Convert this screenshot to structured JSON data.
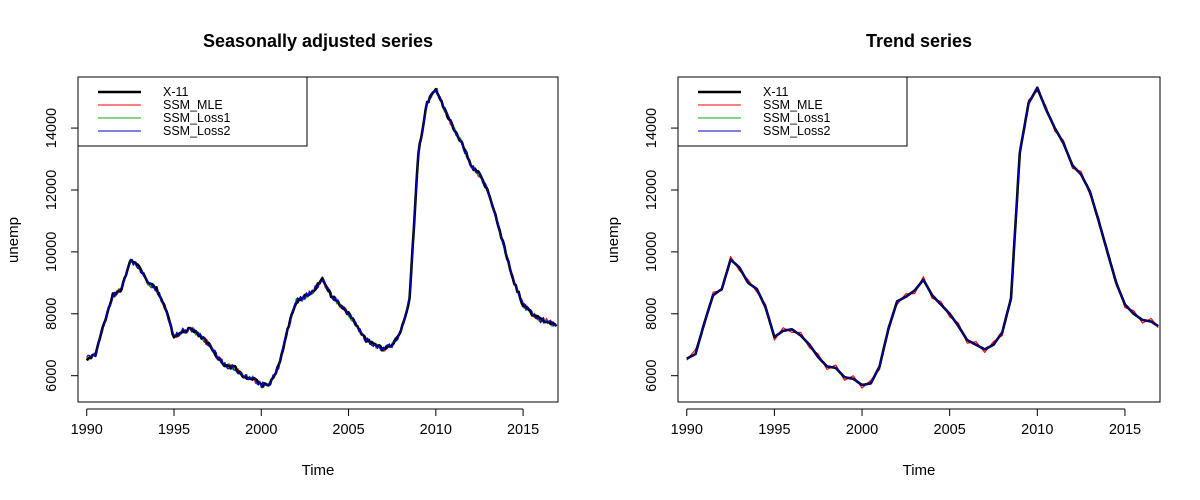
{
  "colors": {
    "SSM_MLE": "#ff0000",
    "SSM_Loss1": "#00b000",
    "SSM_Loss2": "#0000cc",
    "X-11": "#000000"
  },
  "chart_data": [
    {
      "type": "line",
      "title": "Seasonally adjusted series",
      "xlabel": "Time",
      "ylabel": "unemp",
      "xlim": [
        1989.5,
        2017.0
      ],
      "ylim": [
        5150,
        15650
      ],
      "x_ticks": [
        1990,
        1995,
        2000,
        2005,
        2010,
        2015
      ],
      "y_ticks": [
        6000,
        8000,
        10000,
        12000,
        14000
      ],
      "legend_position": "top-left",
      "legend": [
        "X-11",
        "SSM_MLE",
        "SSM_Loss1",
        "SSM_Loss2"
      ],
      "noise": 100,
      "series": [
        {
          "name": "X-11",
          "x": [
            1990.0,
            1990.5,
            1991.0,
            1991.5,
            1992.0,
            1992.5,
            1993.0,
            1993.5,
            1994.0,
            1994.5,
            1995.0,
            1995.5,
            1996.0,
            1996.5,
            1997.0,
            1997.5,
            1998.0,
            1998.5,
            1999.0,
            1999.5,
            2000.0,
            2000.5,
            2001.0,
            2001.5,
            2002.0,
            2002.5,
            2003.0,
            2003.5,
            2004.0,
            2004.5,
            2005.0,
            2005.5,
            2006.0,
            2006.5,
            2007.0,
            2007.5,
            2008.0,
            2008.5,
            2009.0,
            2009.5,
            2010.0,
            2010.5,
            2011.0,
            2011.5,
            2012.0,
            2012.5,
            2013.0,
            2013.5,
            2014.0,
            2014.5,
            2015.0,
            2015.5,
            2016.0,
            2016.5,
            2016.9
          ],
          "y": [
            6550,
            6700,
            7700,
            8600,
            8800,
            9750,
            9500,
            9000,
            8800,
            8200,
            7250,
            7450,
            7500,
            7300,
            7000,
            6600,
            6300,
            6250,
            5950,
            5900,
            5700,
            5750,
            6300,
            7500,
            8400,
            8550,
            8750,
            9100,
            8600,
            8300,
            8000,
            7600,
            7150,
            7000,
            6850,
            7000,
            7400,
            8500,
            13200,
            14800,
            15300,
            14600,
            14000,
            13500,
            12800,
            12500,
            11950,
            11000,
            10000,
            9000,
            8300,
            8000,
            7800,
            7750,
            7600
          ]
        },
        {
          "name": "SSM_MLE",
          "x": [
            1990.0,
            1990.5,
            1991.0,
            1991.5,
            1992.0,
            1992.5,
            1993.0,
            1993.5,
            1994.0,
            1994.5,
            1995.0,
            1995.5,
            1996.0,
            1996.5,
            1997.0,
            1997.5,
            1998.0,
            1998.5,
            1999.0,
            1999.5,
            2000.0,
            2000.5,
            2001.0,
            2001.5,
            2002.0,
            2002.5,
            2003.0,
            2003.5,
            2004.0,
            2004.5,
            2005.0,
            2005.5,
            2006.0,
            2006.5,
            2007.0,
            2007.5,
            2008.0,
            2008.5,
            2009.0,
            2009.5,
            2010.0,
            2010.5,
            2011.0,
            2011.5,
            2012.0,
            2012.5,
            2013.0,
            2013.5,
            2014.0,
            2014.5,
            2015.0,
            2015.5,
            2016.0,
            2016.5,
            2016.9
          ],
          "y": [
            6550,
            6700,
            7700,
            8600,
            8800,
            9750,
            9500,
            9000,
            8800,
            8200,
            7250,
            7450,
            7500,
            7300,
            7000,
            6600,
            6300,
            6250,
            5950,
            5900,
            5700,
            5750,
            6300,
            7500,
            8400,
            8550,
            8750,
            9100,
            8600,
            8300,
            8000,
            7600,
            7150,
            7000,
            6850,
            7000,
            7400,
            8500,
            13200,
            14800,
            15300,
            14600,
            14000,
            13500,
            12800,
            12500,
            11950,
            11000,
            10000,
            9000,
            8300,
            8000,
            7800,
            7750,
            7600
          ]
        },
        {
          "name": "SSM_Loss1",
          "x": [
            1990.0,
            1990.5,
            1991.0,
            1991.5,
            1992.0,
            1992.5,
            1993.0,
            1993.5,
            1994.0,
            1994.5,
            1995.0,
            1995.5,
            1996.0,
            1996.5,
            1997.0,
            1997.5,
            1998.0,
            1998.5,
            1999.0,
            1999.5,
            2000.0,
            2000.5,
            2001.0,
            2001.5,
            2002.0,
            2002.5,
            2003.0,
            2003.5,
            2004.0,
            2004.5,
            2005.0,
            2005.5,
            2006.0,
            2006.5,
            2007.0,
            2007.5,
            2008.0,
            2008.5,
            2009.0,
            2009.5,
            2010.0,
            2010.5,
            2011.0,
            2011.5,
            2012.0,
            2012.5,
            2013.0,
            2013.5,
            2014.0,
            2014.5,
            2015.0,
            2015.5,
            2016.0,
            2016.5,
            2016.9
          ],
          "y": [
            6550,
            6700,
            7700,
            8600,
            8800,
            9750,
            9500,
            9000,
            8800,
            8200,
            7250,
            7450,
            7500,
            7300,
            7000,
            6600,
            6300,
            6250,
            5950,
            5900,
            5700,
            5750,
            6300,
            7500,
            8400,
            8550,
            8750,
            9100,
            8600,
            8300,
            8000,
            7600,
            7150,
            7000,
            6850,
            7000,
            7400,
            8500,
            13200,
            14800,
            15300,
            14600,
            14000,
            13500,
            12800,
            12500,
            11950,
            11000,
            10000,
            9000,
            8300,
            8000,
            7800,
            7750,
            7600
          ]
        },
        {
          "name": "SSM_Loss2",
          "x": [
            1990.0,
            1990.5,
            1991.0,
            1991.5,
            1992.0,
            1992.5,
            1993.0,
            1993.5,
            1994.0,
            1994.5,
            1995.0,
            1995.5,
            1996.0,
            1996.5,
            1997.0,
            1997.5,
            1998.0,
            1998.5,
            1999.0,
            1999.5,
            2000.0,
            2000.5,
            2001.0,
            2001.5,
            2002.0,
            2002.5,
            2003.0,
            2003.5,
            2004.0,
            2004.5,
            2005.0,
            2005.5,
            2006.0,
            2006.5,
            2007.0,
            2007.5,
            2008.0,
            2008.5,
            2009.0,
            2009.5,
            2010.0,
            2010.5,
            2011.0,
            2011.5,
            2012.0,
            2012.5,
            2013.0,
            2013.5,
            2014.0,
            2014.5,
            2015.0,
            2015.5,
            2016.0,
            2016.5,
            2016.9
          ],
          "y": [
            6550,
            6700,
            7700,
            8600,
            8800,
            9750,
            9500,
            9000,
            8800,
            8200,
            7250,
            7450,
            7500,
            7300,
            7000,
            6600,
            6300,
            6250,
            5950,
            5900,
            5700,
            5750,
            6300,
            7500,
            8400,
            8550,
            8750,
            9100,
            8600,
            8300,
            8000,
            7600,
            7150,
            7000,
            6850,
            7000,
            7400,
            8500,
            13200,
            14800,
            15300,
            14600,
            14000,
            13500,
            12800,
            12500,
            11950,
            11000,
            10000,
            9000,
            8300,
            8000,
            7800,
            7750,
            7600
          ]
        }
      ]
    },
    {
      "type": "line",
      "title": "Trend series",
      "xlabel": "Time",
      "ylabel": "unemp",
      "xlim": [
        1989.5,
        2017.0
      ],
      "ylim": [
        5150,
        15650
      ],
      "x_ticks": [
        1990,
        1995,
        2000,
        2005,
        2010,
        2015
      ],
      "y_ticks": [
        6000,
        8000,
        10000,
        12000,
        14000
      ],
      "legend_position": "top-left",
      "legend": [
        "X-11",
        "SSM_MLE",
        "SSM_Loss1",
        "SSM_Loss2"
      ],
      "noise": 0,
      "series": [
        {
          "name": "X-11",
          "x": [
            1990.0,
            1990.5,
            1991.0,
            1991.5,
            1992.0,
            1992.5,
            1993.0,
            1993.5,
            1994.0,
            1994.5,
            1995.0,
            1995.5,
            1996.0,
            1996.5,
            1997.0,
            1997.5,
            1998.0,
            1998.5,
            1999.0,
            1999.5,
            2000.0,
            2000.5,
            2001.0,
            2001.5,
            2002.0,
            2002.5,
            2003.0,
            2003.5,
            2004.0,
            2004.5,
            2005.0,
            2005.5,
            2006.0,
            2006.5,
            2007.0,
            2007.5,
            2008.0,
            2008.5,
            2009.0,
            2009.5,
            2010.0,
            2010.5,
            2011.0,
            2011.5,
            2012.0,
            2012.5,
            2013.0,
            2013.5,
            2014.0,
            2014.5,
            2015.0,
            2015.5,
            2016.0,
            2016.5,
            2016.9
          ],
          "y": [
            6550,
            6700,
            7700,
            8600,
            8800,
            9750,
            9500,
            9000,
            8800,
            8200,
            7250,
            7450,
            7500,
            7300,
            7000,
            6600,
            6300,
            6250,
            5950,
            5900,
            5700,
            5750,
            6300,
            7500,
            8400,
            8550,
            8750,
            9100,
            8600,
            8300,
            8000,
            7600,
            7150,
            7000,
            6850,
            7000,
            7400,
            8500,
            13200,
            14800,
            15300,
            14600,
            14000,
            13500,
            12800,
            12500,
            11950,
            11000,
            10000,
            9000,
            8300,
            8000,
            7800,
            7750,
            7600
          ]
        },
        {
          "name": "SSM_MLE",
          "x": [
            1990.0,
            1990.5,
            1991.0,
            1991.5,
            1992.0,
            1992.5,
            1993.0,
            1993.5,
            1994.0,
            1994.5,
            1995.0,
            1995.5,
            1996.0,
            1996.5,
            1997.0,
            1997.5,
            1998.0,
            1998.5,
            1999.0,
            1999.5,
            2000.0,
            2000.5,
            2001.0,
            2001.5,
            2002.0,
            2002.5,
            2003.0,
            2003.5,
            2004.0,
            2004.5,
            2005.0,
            2005.5,
            2006.0,
            2006.5,
            2007.0,
            2007.5,
            2008.0,
            2008.5,
            2009.0,
            2009.5,
            2010.0,
            2010.5,
            2011.0,
            2011.5,
            2012.0,
            2012.5,
            2013.0,
            2013.5,
            2014.0,
            2014.5,
            2015.0,
            2015.5,
            2016.0,
            2016.5,
            2016.9
          ],
          "y": [
            6500,
            6850,
            7600,
            8700,
            8750,
            9850,
            9400,
            9100,
            8700,
            8300,
            7150,
            7550,
            7400,
            7400,
            6900,
            6700,
            6200,
            6350,
            5850,
            6000,
            5600,
            5850,
            6200,
            7600,
            8300,
            8650,
            8650,
            9200,
            8500,
            8400,
            7900,
            7700,
            7050,
            7100,
            6750,
            7100,
            7300,
            8600,
            13100,
            14900,
            15200,
            14700,
            13900,
            13600,
            12700,
            12600,
            11850,
            11100,
            9900,
            9100,
            8200,
            8100,
            7700,
            7850,
            7550
          ]
        },
        {
          "name": "SSM_Loss1",
          "x": [
            1990.0,
            1990.5,
            1991.0,
            1991.5,
            1992.0,
            1992.5,
            1993.0,
            1993.5,
            1994.0,
            1994.5,
            1995.0,
            1995.5,
            1996.0,
            1996.5,
            1997.0,
            1997.5,
            1998.0,
            1998.5,
            1999.0,
            1999.5,
            2000.0,
            2000.5,
            2001.0,
            2001.5,
            2002.0,
            2002.5,
            2003.0,
            2003.5,
            2004.0,
            2004.5,
            2005.0,
            2005.5,
            2006.0,
            2006.5,
            2007.0,
            2007.5,
            2008.0,
            2008.5,
            2009.0,
            2009.5,
            2010.0,
            2010.5,
            2011.0,
            2011.5,
            2012.0,
            2012.5,
            2013.0,
            2013.5,
            2014.0,
            2014.5,
            2015.0,
            2015.5,
            2016.0,
            2016.5,
            2016.9
          ],
          "y": [
            6550,
            6700,
            7700,
            8600,
            8800,
            9750,
            9500,
            9000,
            8800,
            8200,
            7250,
            7450,
            7500,
            7300,
            7000,
            6600,
            6300,
            6250,
            5950,
            5900,
            5700,
            5750,
            6300,
            7500,
            8400,
            8550,
            8750,
            9100,
            8600,
            8300,
            8000,
            7600,
            7150,
            7000,
            6850,
            7000,
            7400,
            8500,
            13200,
            14800,
            15300,
            14600,
            14000,
            13500,
            12800,
            12500,
            11950,
            11000,
            10000,
            9000,
            8300,
            8000,
            7800,
            7750,
            7600
          ]
        },
        {
          "name": "SSM_Loss2",
          "x": [
            1990.0,
            1990.5,
            1991.0,
            1991.5,
            1992.0,
            1992.5,
            1993.0,
            1993.5,
            1994.0,
            1994.5,
            1995.0,
            1995.5,
            1996.0,
            1996.5,
            1997.0,
            1997.5,
            1998.0,
            1998.5,
            1999.0,
            1999.5,
            2000.0,
            2000.5,
            2001.0,
            2001.5,
            2002.0,
            2002.5,
            2003.0,
            2003.5,
            2004.0,
            2004.5,
            2005.0,
            2005.5,
            2006.0,
            2006.5,
            2007.0,
            2007.5,
            2008.0,
            2008.5,
            2009.0,
            2009.5,
            2010.0,
            2010.5,
            2011.0,
            2011.5,
            2012.0,
            2012.5,
            2013.0,
            2013.5,
            2014.0,
            2014.5,
            2015.0,
            2015.5,
            2016.0,
            2016.5,
            2016.9
          ],
          "y": [
            6550,
            6700,
            7700,
            8600,
            8800,
            9750,
            9500,
            9000,
            8800,
            8200,
            7250,
            7450,
            7500,
            7300,
            7000,
            6600,
            6300,
            6250,
            5950,
            5900,
            5700,
            5750,
            6300,
            7500,
            8400,
            8550,
            8750,
            9100,
            8600,
            8300,
            8000,
            7600,
            7150,
            7000,
            6850,
            7000,
            7400,
            8500,
            13200,
            14800,
            15300,
            14600,
            14000,
            13500,
            12800,
            12500,
            11950,
            11000,
            10000,
            9000,
            8300,
            8000,
            7800,
            7750,
            7600
          ]
        }
      ]
    }
  ]
}
